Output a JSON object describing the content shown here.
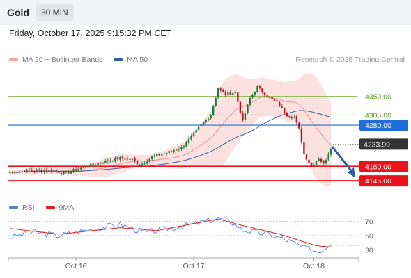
{
  "header": {
    "symbol": "Gold",
    "timeframe": "30 MIN"
  },
  "datetime": "Friday, October 17, 2025 9:15:32 PM CET",
  "legend": {
    "bollinger": {
      "label": "MA 20 + Bollinger Bands",
      "color": "#f5a3a3"
    },
    "ma50": {
      "label": "MA 50",
      "color": "#3a5fa0"
    }
  },
  "copyright": "Research © 2025 Trading Central",
  "rsi_legend": {
    "rsi": {
      "label": "RSI",
      "color": "#5b7fd6"
    },
    "ma9": {
      "label": "9MA",
      "color": "#e02020"
    }
  },
  "levels": [
    {
      "value": 4350.0,
      "label": "4350.00",
      "kind": "green-line"
    },
    {
      "value": 4305.0,
      "label": "4305.00",
      "kind": "green-line"
    },
    {
      "value": 4280.0,
      "label": "4280.00",
      "kind": "blue-pivot"
    },
    {
      "value": 4233.99,
      "label": "4233.99",
      "kind": "current-price"
    },
    {
      "value": 4180.0,
      "label": "4180.00",
      "kind": "red-support"
    },
    {
      "value": 4145.0,
      "label": "4145.00",
      "kind": "red-support"
    }
  ],
  "rsi_levels": [
    {
      "value": 70,
      "label": "70"
    },
    {
      "value": 50,
      "label": "50"
    },
    {
      "value": 30,
      "label": "30"
    }
  ],
  "x_labels": [
    "Oct 16",
    "Oct 17",
    "Oct 18"
  ],
  "colors": {
    "up": "#1f7a3a",
    "down": "#b3161e",
    "pivot": "#1f6fdb",
    "support": "#e8131b",
    "green": "#86b84a",
    "arrow": "#2a5ea8"
  },
  "chart_data": {
    "type": "candlestick",
    "ylim": [
      4120,
      4415
    ],
    "rsi_ylim": [
      20,
      80
    ],
    "anchors": [
      [
        0,
        4166
      ],
      [
        8,
        4170
      ],
      [
        18,
        4170
      ],
      [
        22,
        4163
      ],
      [
        30,
        4178
      ],
      [
        38,
        4191
      ],
      [
        45,
        4200
      ],
      [
        50,
        4196
      ],
      [
        53,
        4183
      ],
      [
        58,
        4203
      ],
      [
        64,
        4213
      ],
      [
        70,
        4226
      ],
      [
        74,
        4252
      ],
      [
        78,
        4280
      ],
      [
        82,
        4305
      ],
      [
        85,
        4370
      ],
      [
        88,
        4355
      ],
      [
        92,
        4360
      ],
      [
        95,
        4290
      ],
      [
        98,
        4345
      ],
      [
        101,
        4372
      ],
      [
        105,
        4350
      ],
      [
        109,
        4335
      ],
      [
        113,
        4305
      ],
      [
        116,
        4300
      ],
      [
        118,
        4270
      ],
      [
        120,
        4210
      ],
      [
        123,
        4180
      ],
      [
        126,
        4200
      ],
      [
        128,
        4185
      ],
      [
        131,
        4226
      ]
    ],
    "rsi_anchors": [
      [
        0,
        48
      ],
      [
        10,
        55
      ],
      [
        20,
        50
      ],
      [
        30,
        57
      ],
      [
        45,
        66
      ],
      [
        55,
        54
      ],
      [
        65,
        60
      ],
      [
        75,
        66
      ],
      [
        85,
        74
      ],
      [
        90,
        70
      ],
      [
        95,
        58
      ],
      [
        105,
        52
      ],
      [
        113,
        44
      ],
      [
        120,
        33
      ],
      [
        126,
        28
      ],
      [
        129,
        34
      ],
      [
        131,
        40
      ]
    ],
    "rsi_ma_anchors": [
      [
        0,
        60
      ],
      [
        20,
        52
      ],
      [
        45,
        61
      ],
      [
        60,
        57
      ],
      [
        85,
        73
      ],
      [
        95,
        64
      ],
      [
        110,
        52
      ],
      [
        125,
        36
      ],
      [
        131,
        34
      ]
    ],
    "x_label_index": [
      27,
      75,
      124
    ]
  }
}
